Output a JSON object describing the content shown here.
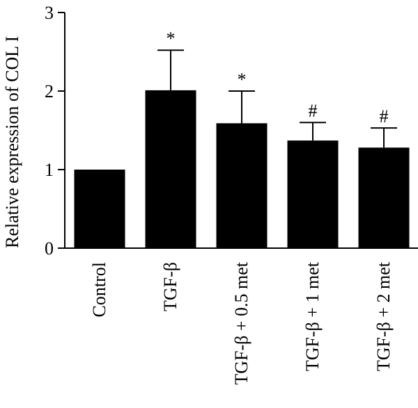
{
  "chart_data": {
    "type": "bar",
    "title": "",
    "xlabel": "",
    "ylabel": "Relative expression of COL I",
    "ylim": [
      0,
      3
    ],
    "yticks": [
      0,
      1,
      2,
      3
    ],
    "grid": false,
    "legend": "none",
    "bar_color": "#000000",
    "categories": [
      "Control",
      "TGF-β",
      "TGF-β + 0.5 met",
      "TGF-β + 1 met",
      "TGF-β + 2 met"
    ],
    "values": [
      1.0,
      2.01,
      1.59,
      1.37,
      1.28
    ],
    "errors": [
      0,
      0.51,
      0.41,
      0.23,
      0.25
    ],
    "annotations": [
      "",
      "*",
      "*",
      "#",
      "#"
    ]
  }
}
